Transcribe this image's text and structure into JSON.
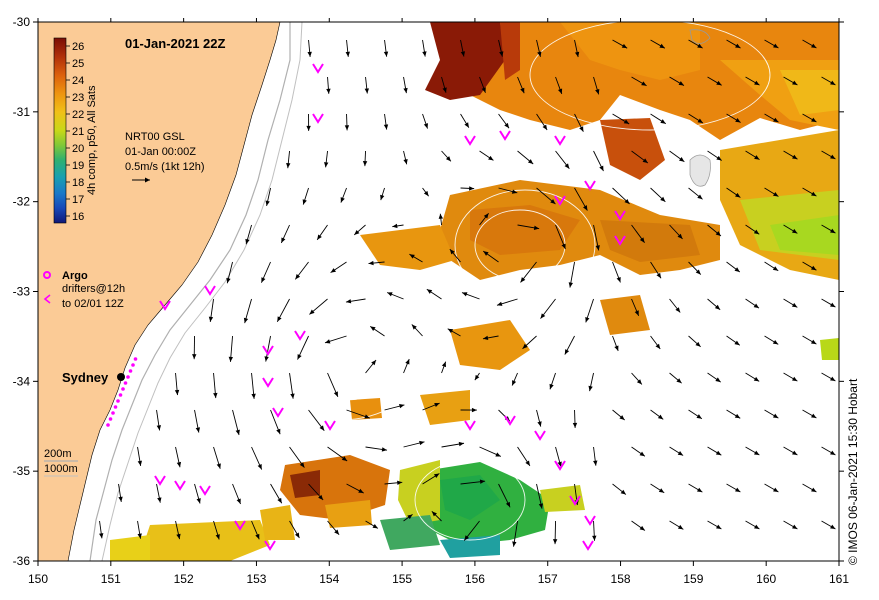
{
  "map": {
    "title": "01-Jan-2021 22Z",
    "colorbar": {
      "ticks": [
        "26",
        "25",
        "24",
        "23",
        "22",
        "21",
        "20",
        "19",
        "18",
        "17",
        "16"
      ],
      "label": "4h comp, p50, All Sats",
      "colors": [
        "#7a0d05",
        "#a82a08",
        "#d24a08",
        "#e8780a",
        "#f0a010",
        "#e8c818",
        "#b8d818",
        "#70c840",
        "#30b070",
        "#1aa8a8",
        "#1a80c8",
        "#1a50c0",
        "#101878"
      ]
    },
    "current_legend": {
      "line1": "NRT00 GSL",
      "line2": "01-Jan 00:00Z",
      "line3": "0.5m/s (1kt 12h)"
    },
    "argo_label": "Argo",
    "drifter_label1": "drifters@12h",
    "drifter_label2": "to 02/01 12Z",
    "city_label": "Sydney",
    "isobath_label1": "200m",
    "isobath_label2": "1000m",
    "credit": "© IMOS 06-Jan-2021 15:30 Hobart",
    "x_axis": {
      "ticks": [
        "150",
        "151",
        "152",
        "153",
        "154",
        "155",
        "156",
        "157",
        "158",
        "159",
        "160",
        "161"
      ],
      "range": [
        150,
        161
      ]
    },
    "y_axis": {
      "ticks": [
        "-30",
        "-31",
        "-32",
        "-33",
        "-34",
        "-35",
        "-36"
      ],
      "range": [
        -36,
        -30
      ]
    },
    "colors": {
      "land": "#fbcb96",
      "sea_no_data": "#ffffff",
      "drifter": "#ff00ff",
      "arrow": "#000000",
      "isobath": "#b0b0b0"
    }
  }
}
